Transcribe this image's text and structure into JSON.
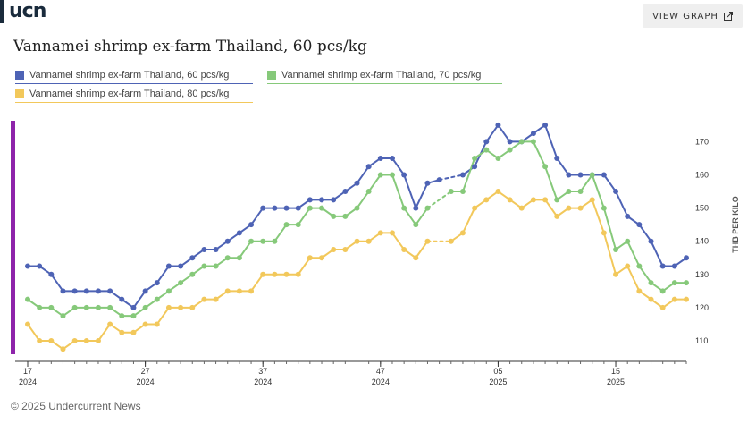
{
  "brand": {
    "logo_text": "ucn"
  },
  "header": {
    "view_button_label": "VIEW GRAPH",
    "title": "Vannamei shrimp ex-farm Thailand, 60 pcs/kg"
  },
  "colors": {
    "series60": "#4e63b5",
    "series70": "#86c97a",
    "series80": "#f2c85b",
    "accent": "#8e24aa"
  },
  "icons": {
    "view_button_icon": "external-link-icon"
  },
  "footer": {
    "copyright": "© 2025 Undercurrent News"
  },
  "chart_data": {
    "type": "line",
    "title": "Vannamei shrimp ex-farm Thailand, 60 pcs/kg",
    "ylabel": "THB PER KILO",
    "ylim": [
      105,
      177
    ],
    "yticks": [
      110,
      120,
      130,
      140,
      150,
      160,
      170
    ],
    "xlim": [
      0,
      56
    ],
    "xticks": [
      {
        "x": 0,
        "week": "17",
        "year": "2024"
      },
      {
        "x": 10,
        "week": "27",
        "year": "2024"
      },
      {
        "x": 20,
        "week": "37",
        "year": "2024"
      },
      {
        "x": 30,
        "week": "47",
        "year": "2024"
      },
      {
        "x": 40,
        "week": "05",
        "year": "2025"
      },
      {
        "x": 50,
        "week": "15",
        "year": "2025"
      }
    ],
    "grid": false,
    "legend_position": "top-left",
    "series": [
      {
        "name": "Vannamei shrimp ex-farm Thailand, 60 pcs/kg",
        "x": [
          0,
          1,
          2,
          3,
          4,
          5,
          6,
          7,
          8,
          9,
          10,
          11,
          12,
          13,
          14,
          15,
          16,
          17,
          18,
          19,
          20,
          21,
          22,
          23,
          24,
          25,
          26,
          27,
          28,
          29,
          30,
          31,
          32,
          33,
          34,
          35,
          37,
          38,
          39,
          40,
          41,
          42,
          43,
          44,
          45,
          46,
          47,
          48,
          49,
          50,
          51,
          52,
          53,
          54,
          55,
          56
        ],
        "values": [
          132.5,
          132.5,
          130,
          125,
          125,
          125,
          125,
          125,
          122.5,
          120,
          125,
          127.5,
          132.5,
          132.5,
          135,
          137.5,
          137.5,
          140,
          142.5,
          145,
          150,
          150,
          150,
          150,
          152.5,
          152.5,
          152.5,
          155,
          157.5,
          162.5,
          165,
          165,
          160,
          150,
          157.5,
          158.5,
          160,
          162.5,
          170,
          175,
          170,
          170,
          172.5,
          175,
          165,
          160,
          160,
          160,
          160,
          155,
          147.5,
          145,
          140,
          132.5,
          132.5,
          135
        ]
      },
      {
        "name": "Vannamei shrimp ex-farm Thailand, 70 pcs/kg",
        "x": [
          0,
          1,
          2,
          3,
          4,
          5,
          6,
          7,
          8,
          9,
          10,
          11,
          12,
          13,
          14,
          15,
          16,
          17,
          18,
          19,
          20,
          21,
          22,
          23,
          24,
          25,
          26,
          27,
          28,
          29,
          30,
          31,
          32,
          33,
          34,
          36,
          37,
          38,
          39,
          40,
          41,
          42,
          43,
          44,
          45,
          46,
          47,
          48,
          49,
          50,
          51,
          52,
          53,
          54,
          55,
          56
        ],
        "values": [
          122.5,
          120,
          120,
          117.5,
          120,
          120,
          120,
          120,
          117.5,
          117.5,
          120,
          122.5,
          125,
          127.5,
          130,
          132.5,
          132.5,
          135,
          135,
          140,
          140,
          140,
          145,
          145,
          150,
          150,
          147.5,
          147.5,
          150,
          155,
          160,
          160,
          150,
          145,
          150,
          155,
          155,
          165,
          167.5,
          165,
          167.5,
          170,
          170,
          162.5,
          152.5,
          155,
          155,
          160,
          150,
          137.5,
          140,
          132.5,
          127.5,
          125,
          127.5,
          127.5
        ]
      },
      {
        "name": "Vannamei shrimp ex-farm Thailand, 80 pcs/kg",
        "x": [
          0,
          1,
          2,
          3,
          4,
          5,
          6,
          7,
          8,
          9,
          10,
          11,
          12,
          13,
          14,
          15,
          16,
          17,
          18,
          19,
          20,
          21,
          22,
          23,
          24,
          25,
          26,
          27,
          28,
          29,
          30,
          31,
          32,
          33,
          34,
          36,
          37,
          38,
          39,
          40,
          41,
          42,
          43,
          44,
          45,
          46,
          47,
          48,
          49,
          50,
          51,
          52,
          53,
          54,
          55,
          56
        ],
        "values": [
          115,
          110,
          110,
          107.5,
          110,
          110,
          110,
          115,
          112.5,
          112.5,
          115,
          115,
          120,
          120,
          120,
          122.5,
          122.5,
          125,
          125,
          125,
          130,
          130,
          130,
          130,
          135,
          135,
          137.5,
          137.5,
          140,
          140,
          142.5,
          142.5,
          137.5,
          135,
          140,
          140,
          142.5,
          150,
          152.5,
          155,
          152.5,
          150,
          152.5,
          152.5,
          147.5,
          150,
          150,
          152.5,
          142.5,
          130,
          132.5,
          125,
          122.5,
          120,
          122.5,
          122.5
        ]
      }
    ]
  }
}
